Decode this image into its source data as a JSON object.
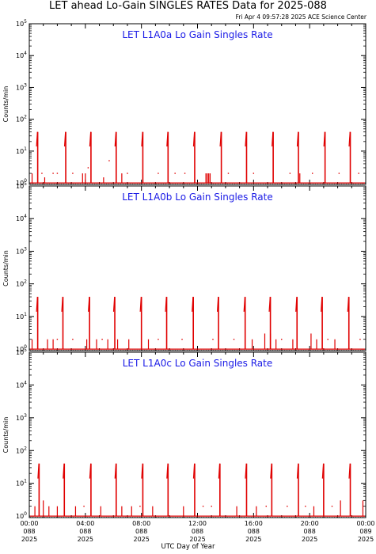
{
  "header": {
    "title": "LET ahead Lo-Gain SINGLES RATES Data for 2025-088",
    "timestamp": "Fri Apr  4 09:57:28 2025 ACE Science Center"
  },
  "colors": {
    "data": "#e00000",
    "panel_title": "#1a1ae6",
    "axis": "#000000"
  },
  "chart_data": [
    {
      "type": "line",
      "title": "LET L1A0a Lo Gain Singles Rate",
      "ylabel": "Counts/min",
      "yscale": "log",
      "ylim": [
        0.9,
        100000
      ],
      "yticks": [
        1,
        10,
        100,
        1000,
        10000,
        100000
      ],
      "xlim": [
        0,
        24
      ],
      "baseline": 1,
      "spikes": [
        {
          "x": 0.6,
          "y": 40
        },
        {
          "x": 2.6,
          "y": 40
        },
        {
          "x": 4.4,
          "y": 40
        },
        {
          "x": 6.2,
          "y": 40
        },
        {
          "x": 8.1,
          "y": 40
        },
        {
          "x": 9.9,
          "y": 40
        },
        {
          "x": 11.8,
          "y": 40
        },
        {
          "x": 13.7,
          "y": 40
        },
        {
          "x": 15.5,
          "y": 40
        },
        {
          "x": 17.4,
          "y": 40
        },
        {
          "x": 19.2,
          "y": 40
        },
        {
          "x": 21.1,
          "y": 40
        },
        {
          "x": 22.9,
          "y": 40
        }
      ],
      "small_spikes": [
        {
          "x": 0.2,
          "y": 2
        },
        {
          "x": 1.1,
          "y": 1.5
        },
        {
          "x": 3.8,
          "y": 2
        },
        {
          "x": 4.0,
          "y": 2
        },
        {
          "x": 5.3,
          "y": 1.5
        },
        {
          "x": 6.6,
          "y": 2
        },
        {
          "x": 12.6,
          "y": 2
        },
        {
          "x": 12.7,
          "y": 2
        },
        {
          "x": 12.8,
          "y": 2
        },
        {
          "x": 12.9,
          "y": 2
        },
        {
          "x": 19.3,
          "y": 2
        }
      ],
      "scatter": [
        {
          "x": 0.9,
          "y": 2
        },
        {
          "x": 1.7,
          "y": 2
        },
        {
          "x": 2.0,
          "y": 2
        },
        {
          "x": 3.1,
          "y": 2
        },
        {
          "x": 4.2,
          "y": 3
        },
        {
          "x": 5.7,
          "y": 5
        },
        {
          "x": 7.0,
          "y": 2
        },
        {
          "x": 9.2,
          "y": 2
        },
        {
          "x": 10.4,
          "y": 2
        },
        {
          "x": 11.1,
          "y": 2
        },
        {
          "x": 14.2,
          "y": 2
        },
        {
          "x": 16.0,
          "y": 2
        },
        {
          "x": 18.6,
          "y": 2
        },
        {
          "x": 20.2,
          "y": 2
        },
        {
          "x": 22.1,
          "y": 2
        },
        {
          "x": 23.5,
          "y": 2
        }
      ]
    },
    {
      "type": "line",
      "title": "LET L1A0b Lo Gain Singles Rate",
      "ylabel": "Counts/min",
      "yscale": "log",
      "ylim": [
        0.9,
        100000
      ],
      "yticks": [
        1,
        10,
        100,
        1000,
        10000,
        100000
      ],
      "xlim": [
        0,
        24
      ],
      "baseline": 1,
      "spikes": [
        {
          "x": 0.6,
          "y": 40
        },
        {
          "x": 2.4,
          "y": 40
        },
        {
          "x": 4.3,
          "y": 40
        },
        {
          "x": 6.1,
          "y": 40
        },
        {
          "x": 8.0,
          "y": 40
        },
        {
          "x": 9.8,
          "y": 40
        },
        {
          "x": 11.7,
          "y": 40
        },
        {
          "x": 13.5,
          "y": 40
        },
        {
          "x": 15.4,
          "y": 40
        },
        {
          "x": 17.2,
          "y": 40
        },
        {
          "x": 19.1,
          "y": 40
        },
        {
          "x": 20.9,
          "y": 40
        },
        {
          "x": 22.8,
          "y": 40
        }
      ],
      "small_spikes": [
        {
          "x": 0.2,
          "y": 2
        },
        {
          "x": 1.3,
          "y": 2
        },
        {
          "x": 1.7,
          "y": 2
        },
        {
          "x": 4.1,
          "y": 2
        },
        {
          "x": 4.8,
          "y": 2
        },
        {
          "x": 5.6,
          "y": 2
        },
        {
          "x": 6.3,
          "y": 2
        },
        {
          "x": 7.1,
          "y": 2
        },
        {
          "x": 8.5,
          "y": 2
        },
        {
          "x": 15.9,
          "y": 2
        },
        {
          "x": 16.8,
          "y": 3
        },
        {
          "x": 17.2,
          "y": 3
        },
        {
          "x": 17.6,
          "y": 2
        },
        {
          "x": 18.8,
          "y": 2
        },
        {
          "x": 20.1,
          "y": 3
        },
        {
          "x": 20.5,
          "y": 2
        },
        {
          "x": 21.8,
          "y": 2
        }
      ],
      "scatter": [
        {
          "x": 2.0,
          "y": 2
        },
        {
          "x": 3.1,
          "y": 2
        },
        {
          "x": 5.2,
          "y": 2
        },
        {
          "x": 9.2,
          "y": 2
        },
        {
          "x": 10.9,
          "y": 2
        },
        {
          "x": 13.1,
          "y": 2
        },
        {
          "x": 14.6,
          "y": 2
        },
        {
          "x": 18.0,
          "y": 2
        },
        {
          "x": 21.3,
          "y": 2
        },
        {
          "x": 23.6,
          "y": 2
        }
      ]
    },
    {
      "type": "line",
      "title": "LET L1A0c Lo Gain Singles Rate",
      "ylabel": "Counts/min",
      "yscale": "log",
      "ylim": [
        0.9,
        100000
      ],
      "yticks": [
        1,
        10,
        100,
        1000,
        10000,
        100000
      ],
      "xlim": [
        0,
        24
      ],
      "baseline": 1,
      "spikes": [
        {
          "x": 0.7,
          "y": 40
        },
        {
          "x": 2.5,
          "y": 40
        },
        {
          "x": 4.4,
          "y": 40
        },
        {
          "x": 6.2,
          "y": 40
        },
        {
          "x": 8.1,
          "y": 40
        },
        {
          "x": 9.9,
          "y": 40
        },
        {
          "x": 11.8,
          "y": 40
        },
        {
          "x": 13.6,
          "y": 40
        },
        {
          "x": 15.5,
          "y": 40
        },
        {
          "x": 17.3,
          "y": 40
        },
        {
          "x": 19.2,
          "y": 40
        },
        {
          "x": 21.0,
          "y": 40
        },
        {
          "x": 22.9,
          "y": 40
        }
      ],
      "small_spikes": [
        {
          "x": 0.4,
          "y": 2
        },
        {
          "x": 1.0,
          "y": 3
        },
        {
          "x": 1.4,
          "y": 2
        },
        {
          "x": 2.0,
          "y": 2
        },
        {
          "x": 3.3,
          "y": 2
        },
        {
          "x": 5.1,
          "y": 2
        },
        {
          "x": 6.6,
          "y": 2
        },
        {
          "x": 7.3,
          "y": 2
        },
        {
          "x": 8.8,
          "y": 2
        },
        {
          "x": 11.0,
          "y": 2
        },
        {
          "x": 14.8,
          "y": 2
        },
        {
          "x": 16.2,
          "y": 2
        },
        {
          "x": 20.3,
          "y": 2
        },
        {
          "x": 22.2,
          "y": 3
        },
        {
          "x": 23.8,
          "y": 3
        }
      ],
      "scatter": [
        {
          "x": 3.9,
          "y": 2
        },
        {
          "x": 7.9,
          "y": 2
        },
        {
          "x": 12.4,
          "y": 2
        },
        {
          "x": 13.0,
          "y": 2
        },
        {
          "x": 16.9,
          "y": 2
        },
        {
          "x": 18.4,
          "y": 2
        },
        {
          "x": 19.7,
          "y": 2
        },
        {
          "x": 21.6,
          "y": 2
        }
      ]
    }
  ],
  "x_axis": {
    "label": "UTC Day of Year",
    "ticks": [
      {
        "value": 0,
        "time": "00:00",
        "doy": "088",
        "year": "2025"
      },
      {
        "value": 4,
        "time": "04:00",
        "doy": "088",
        "year": "2025"
      },
      {
        "value": 8,
        "time": "08:00",
        "doy": "088",
        "year": "2025"
      },
      {
        "value": 12,
        "time": "12:00",
        "doy": "088",
        "year": "2025"
      },
      {
        "value": 16,
        "time": "16:00",
        "doy": "088",
        "year": "2025"
      },
      {
        "value": 20,
        "time": "20:00",
        "doy": "088",
        "year": "2025"
      },
      {
        "value": 24,
        "time": "00:00",
        "doy": "089",
        "year": "2025"
      }
    ]
  }
}
